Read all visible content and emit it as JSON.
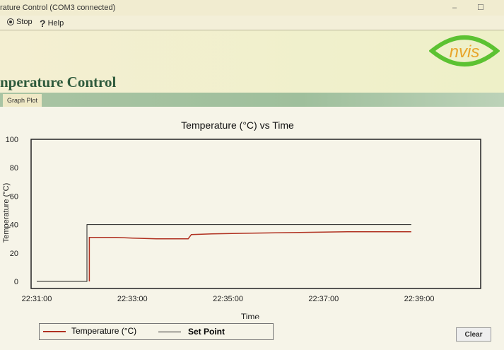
{
  "window": {
    "title": "rature Control (COM3 connected)",
    "minimize": "–",
    "maximize": "☐"
  },
  "menu": {
    "items": [
      {
        "label": "Stop",
        "icon": "stop-circle-icon"
      },
      {
        "label": "Help",
        "icon": "question-icon"
      }
    ]
  },
  "header": {
    "title": "nperature Control",
    "logo_text": "nvis"
  },
  "tabs": [
    {
      "label": "Graph Plot",
      "active": true
    }
  ],
  "buttons": {
    "clear": "Clear"
  },
  "colors": {
    "temperature": "#b03020",
    "set_point": "#222222",
    "title_green": "#2e5a3c",
    "logo_green": "#5cc232",
    "logo_text": "#e8a52a"
  },
  "chart_data": {
    "type": "line",
    "title": "Temperature (°C) vs Time",
    "xlabel": "Time",
    "ylabel": "Temperature (°C)",
    "ylim": [
      0,
      100
    ],
    "yticks": [
      "0",
      "20",
      "40",
      "60",
      "80",
      "100"
    ],
    "xlim": [
      "22:31:00",
      "22:40:10"
    ],
    "xticks": [
      "22:31:00",
      "22:33:00",
      "22:35:00",
      "22:37:00",
      "22:39:00"
    ],
    "grid": false,
    "legend": "bottom-left",
    "series": [
      {
        "name": "Temperature (°C)",
        "color": "#b03020",
        "points": [
          [
            "22:32:06",
            0
          ],
          [
            "22:32:06",
            31
          ],
          [
            "22:32:40",
            31
          ],
          [
            "22:33:00",
            30.5
          ],
          [
            "22:33:30",
            30
          ],
          [
            "22:34:00",
            30
          ],
          [
            "22:34:10",
            30
          ],
          [
            "22:34:14",
            33
          ],
          [
            "22:34:40",
            33.5
          ],
          [
            "22:35:30",
            34
          ],
          [
            "22:36:30",
            34.5
          ],
          [
            "22:37:30",
            35
          ],
          [
            "22:38:20",
            35
          ],
          [
            "22:38:50",
            35
          ]
        ]
      },
      {
        "name": "Set Point",
        "color": "#222222",
        "points": [
          [
            "22:31:00",
            0
          ],
          [
            "22:32:03",
            0
          ],
          [
            "22:32:03",
            40
          ],
          [
            "22:38:50",
            40
          ]
        ]
      }
    ]
  }
}
